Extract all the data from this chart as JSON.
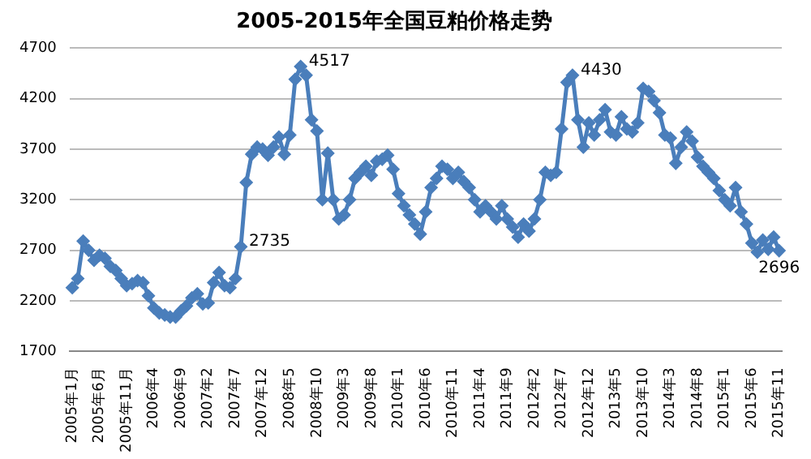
{
  "chart_data": {
    "type": "line",
    "title": "2005-2015年全国豆粕价格走势",
    "categories": [
      "2005年1月",
      null,
      null,
      null,
      null,
      "2005年6月",
      null,
      null,
      null,
      null,
      "2005年11月",
      null,
      null,
      null,
      null,
      "2006年4",
      null,
      null,
      null,
      null,
      "2006年9",
      null,
      null,
      null,
      null,
      "2007年2",
      null,
      null,
      null,
      null,
      "2007年7",
      null,
      null,
      null,
      null,
      "2007年12",
      null,
      null,
      null,
      null,
      "2008年5",
      null,
      null,
      null,
      null,
      "2008年10",
      null,
      null,
      null,
      null,
      "2009年3",
      null,
      null,
      null,
      null,
      "2009年8",
      null,
      null,
      null,
      null,
      "2010年1",
      null,
      null,
      null,
      null,
      "2010年6",
      null,
      null,
      null,
      null,
      "2010年11",
      null,
      null,
      null,
      null,
      "2011年4",
      null,
      null,
      null,
      null,
      "2011年9",
      null,
      null,
      null,
      null,
      "2012年2",
      null,
      null,
      null,
      null,
      "2012年7",
      null,
      null,
      null,
      null,
      "2012年12",
      null,
      null,
      null,
      null,
      "2013年5",
      null,
      null,
      null,
      null,
      "2013年10",
      null,
      null,
      null,
      null,
      "2014年3",
      null,
      null,
      null,
      null,
      "2014年8",
      null,
      null,
      null,
      null,
      "2015年1",
      null,
      null,
      null,
      null,
      "2015年6",
      null,
      null,
      null,
      null,
      "2015年11"
    ],
    "series": [
      {
        "color": "#4a7ebb",
        "values": [
          2330,
          2420,
          2790,
          2700,
          2600,
          2650,
          2620,
          2540,
          2500,
          2420,
          2350,
          2370,
          2400,
          2380,
          2250,
          2130,
          2080,
          2060,
          2040,
          2040,
          2100,
          2150,
          2230,
          2270,
          2170,
          2180,
          2380,
          2480,
          2350,
          2330,
          2420,
          2735,
          3370,
          3650,
          3720,
          3700,
          3640,
          3720,
          3820,
          3650,
          3840,
          4390,
          4517,
          4430,
          3990,
          3880,
          3200,
          3660,
          3200,
          3010,
          3050,
          3200,
          3410,
          3470,
          3530,
          3440,
          3580,
          3600,
          3640,
          3500,
          3260,
          3140,
          3050,
          2960,
          2860,
          3080,
          3320,
          3410,
          3530,
          3500,
          3410,
          3470,
          3380,
          3320,
          3200,
          3080,
          3140,
          3080,
          3010,
          3140,
          3010,
          2930,
          2830,
          2960,
          2890,
          3010,
          3200,
          3470,
          3440,
          3470,
          3900,
          4360,
          4430,
          3990,
          3720,
          3960,
          3840,
          3990,
          4090,
          3870,
          3840,
          4020,
          3900,
          3870,
          3960,
          4300,
          4270,
          4180,
          4060,
          3840,
          3810,
          3560,
          3720,
          3870,
          3780,
          3620,
          3530,
          3470,
          3410,
          3290,
          3200,
          3140,
          3320,
          3080,
          2960,
          2770,
          2680,
          2800,
          2710,
          2830,
          2696
        ],
        "value_labels": [
          null,
          null,
          null,
          null,
          null,
          null,
          null,
          null,
          null,
          null,
          null,
          null,
          null,
          null,
          null,
          null,
          null,
          null,
          null,
          null,
          null,
          null,
          null,
          null,
          null,
          null,
          null,
          null,
          null,
          null,
          null,
          "2735",
          null,
          null,
          null,
          null,
          null,
          null,
          null,
          null,
          null,
          null,
          "4517",
          null,
          null,
          null,
          null,
          null,
          null,
          null,
          null,
          null,
          null,
          null,
          null,
          null,
          null,
          null,
          null,
          null,
          null,
          null,
          null,
          null,
          null,
          null,
          null,
          null,
          null,
          null,
          null,
          null,
          null,
          null,
          null,
          null,
          null,
          null,
          null,
          null,
          null,
          null,
          null,
          null,
          null,
          null,
          null,
          null,
          null,
          null,
          null,
          null,
          "4430",
          null,
          null,
          null,
          null,
          null,
          null,
          null,
          null,
          null,
          null,
          null,
          null,
          null,
          null,
          null,
          null,
          null,
          null,
          null,
          null,
          null,
          null,
          null,
          null,
          null,
          null,
          null,
          null,
          null,
          null,
          null,
          null,
          null,
          null,
          null,
          null,
          null,
          "2696"
        ]
      }
    ],
    "ylim": [
      1700,
      4700
    ],
    "yticks": [
      1700,
      2200,
      2700,
      3200,
      3700,
      4200,
      4700
    ],
    "grid": "y",
    "legend": false,
    "marker": "diamond",
    "line_style": "solid"
  }
}
